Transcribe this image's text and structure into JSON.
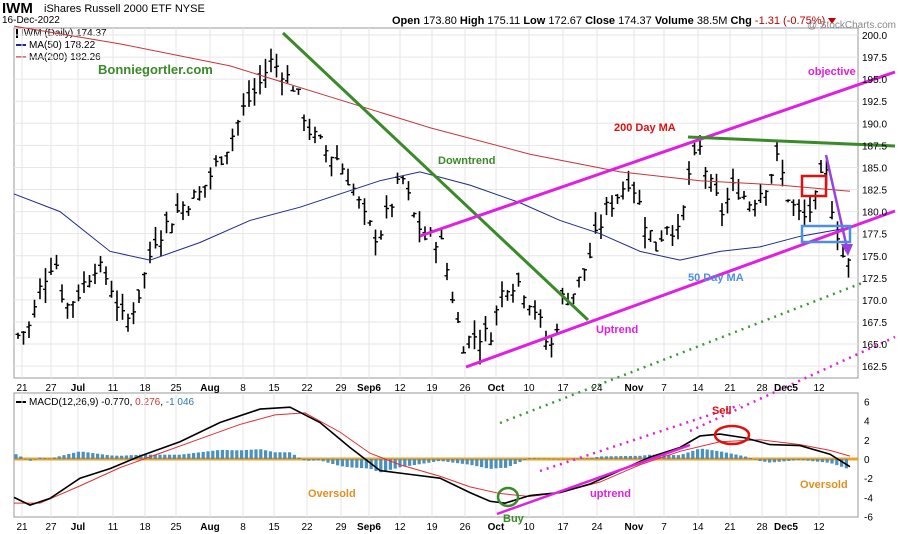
{
  "header": {
    "ticker": "IWM",
    "name": "iShares Russell 2000 ETF",
    "exchange": "NYSE",
    "date": "16-Dec-2022",
    "open_label": "Open",
    "open": "173.80",
    "high_label": "High",
    "high": "175.11",
    "low_label": "Low",
    "low": "172.67",
    "close_label": "Close",
    "close": "174.37",
    "volume_label": "Volume",
    "volume": "38.5M",
    "chg_label": "Chg",
    "chg": "-1.31 (-0.75%)",
    "watermark": "@ StockCharts.com"
  },
  "legend": {
    "price": "IWM (Daily) 174.37",
    "ma50": "MA(50) 178.22",
    "ma200": "MA(200) 182.26",
    "macd_name": "MACD(12,26,9)",
    "macd_v1": "-0.770",
    "macd_v2": "0.276",
    "macd_v3": "-1.046"
  },
  "annotations": {
    "site": "Bonniegortler.com",
    "downtrend": "Downtrend",
    "objective": "objective",
    "ma200": "200 Day MA",
    "ma50": "50 Day MA",
    "uptrend_price": "Uptrend",
    "oversold_left": "Oversold",
    "oversold_right": "Oversold",
    "buy": "Buy",
    "sell": "Sell",
    "uptrend_macd": "uptrend"
  },
  "colors": {
    "price_bar": "#000000",
    "ma50": "#1f2a8a",
    "ma200": "#c8353a",
    "trend_magenta": "#e020e0",
    "trend_green": "#3a8a2a",
    "dotted_green": "#3a9a3a",
    "objective_arrow": "#9a40e0",
    "red_box": "#e01010",
    "blue_box": "#4a90e0",
    "histogram": "#4a90c0",
    "zero_line": "#f0a020",
    "macd_line": "#000000",
    "signal_line": "#e03030",
    "annot_orange": "#e09020"
  },
  "chart_data": [
    {
      "type": "ohlc",
      "title": "IWM iShares Russell 2000 ETF NYSE",
      "ylim": [
        161,
        201
      ],
      "yticks": [
        "200.0",
        "197.5",
        "195.0",
        "192.5",
        "190.0",
        "187.5",
        "185.0",
        "182.5",
        "180.0",
        "177.5",
        "175.0",
        "172.5",
        "170.0",
        "167.5",
        "165.0",
        "162.5"
      ],
      "ytick_values": [
        200,
        197.5,
        195,
        192.5,
        190,
        187.5,
        185,
        182.5,
        180,
        177.5,
        175,
        172.5,
        170,
        167.5,
        165,
        162.5
      ],
      "xticks": [
        "21",
        "27",
        "Jul",
        "11",
        "18",
        "25",
        "Aug",
        "8",
        "15",
        "22",
        "29",
        "Sep6",
        "12",
        "19",
        "26",
        "Oct",
        "10",
        "17",
        "24",
        "Nov",
        "7",
        "14",
        "21",
        "28",
        "Dec5",
        "12"
      ],
      "series": [
        {
          "name": "MA(50) 178.22"
        },
        {
          "name": "MA(200) 182.26"
        }
      ],
      "last_close": 174.37
    },
    {
      "type": "bar+line",
      "title": "MACD(12,26,9)",
      "ylim": [
        -7,
        7
      ],
      "yticks": [
        "6",
        "4",
        "2",
        "0",
        "-2",
        "-4",
        "-6"
      ],
      "ytick_values": [
        6,
        4,
        2,
        0,
        -2,
        -4,
        -6
      ],
      "xticks": [
        "21",
        "27",
        "Jul",
        "11",
        "18",
        "25",
        "Aug",
        "8",
        "15",
        "22",
        "29",
        "Sep6",
        "12",
        "19",
        "26",
        "Oct",
        "10",
        "17",
        "24",
        "Nov",
        "7",
        "14",
        "21",
        "28",
        "Dec5",
        "12"
      ],
      "series": [
        {
          "name": "MACD",
          "last": -0.77
        },
        {
          "name": "Signal",
          "last": 0.276
        },
        {
          "name": "Histogram",
          "last": -1.046
        }
      ]
    }
  ]
}
